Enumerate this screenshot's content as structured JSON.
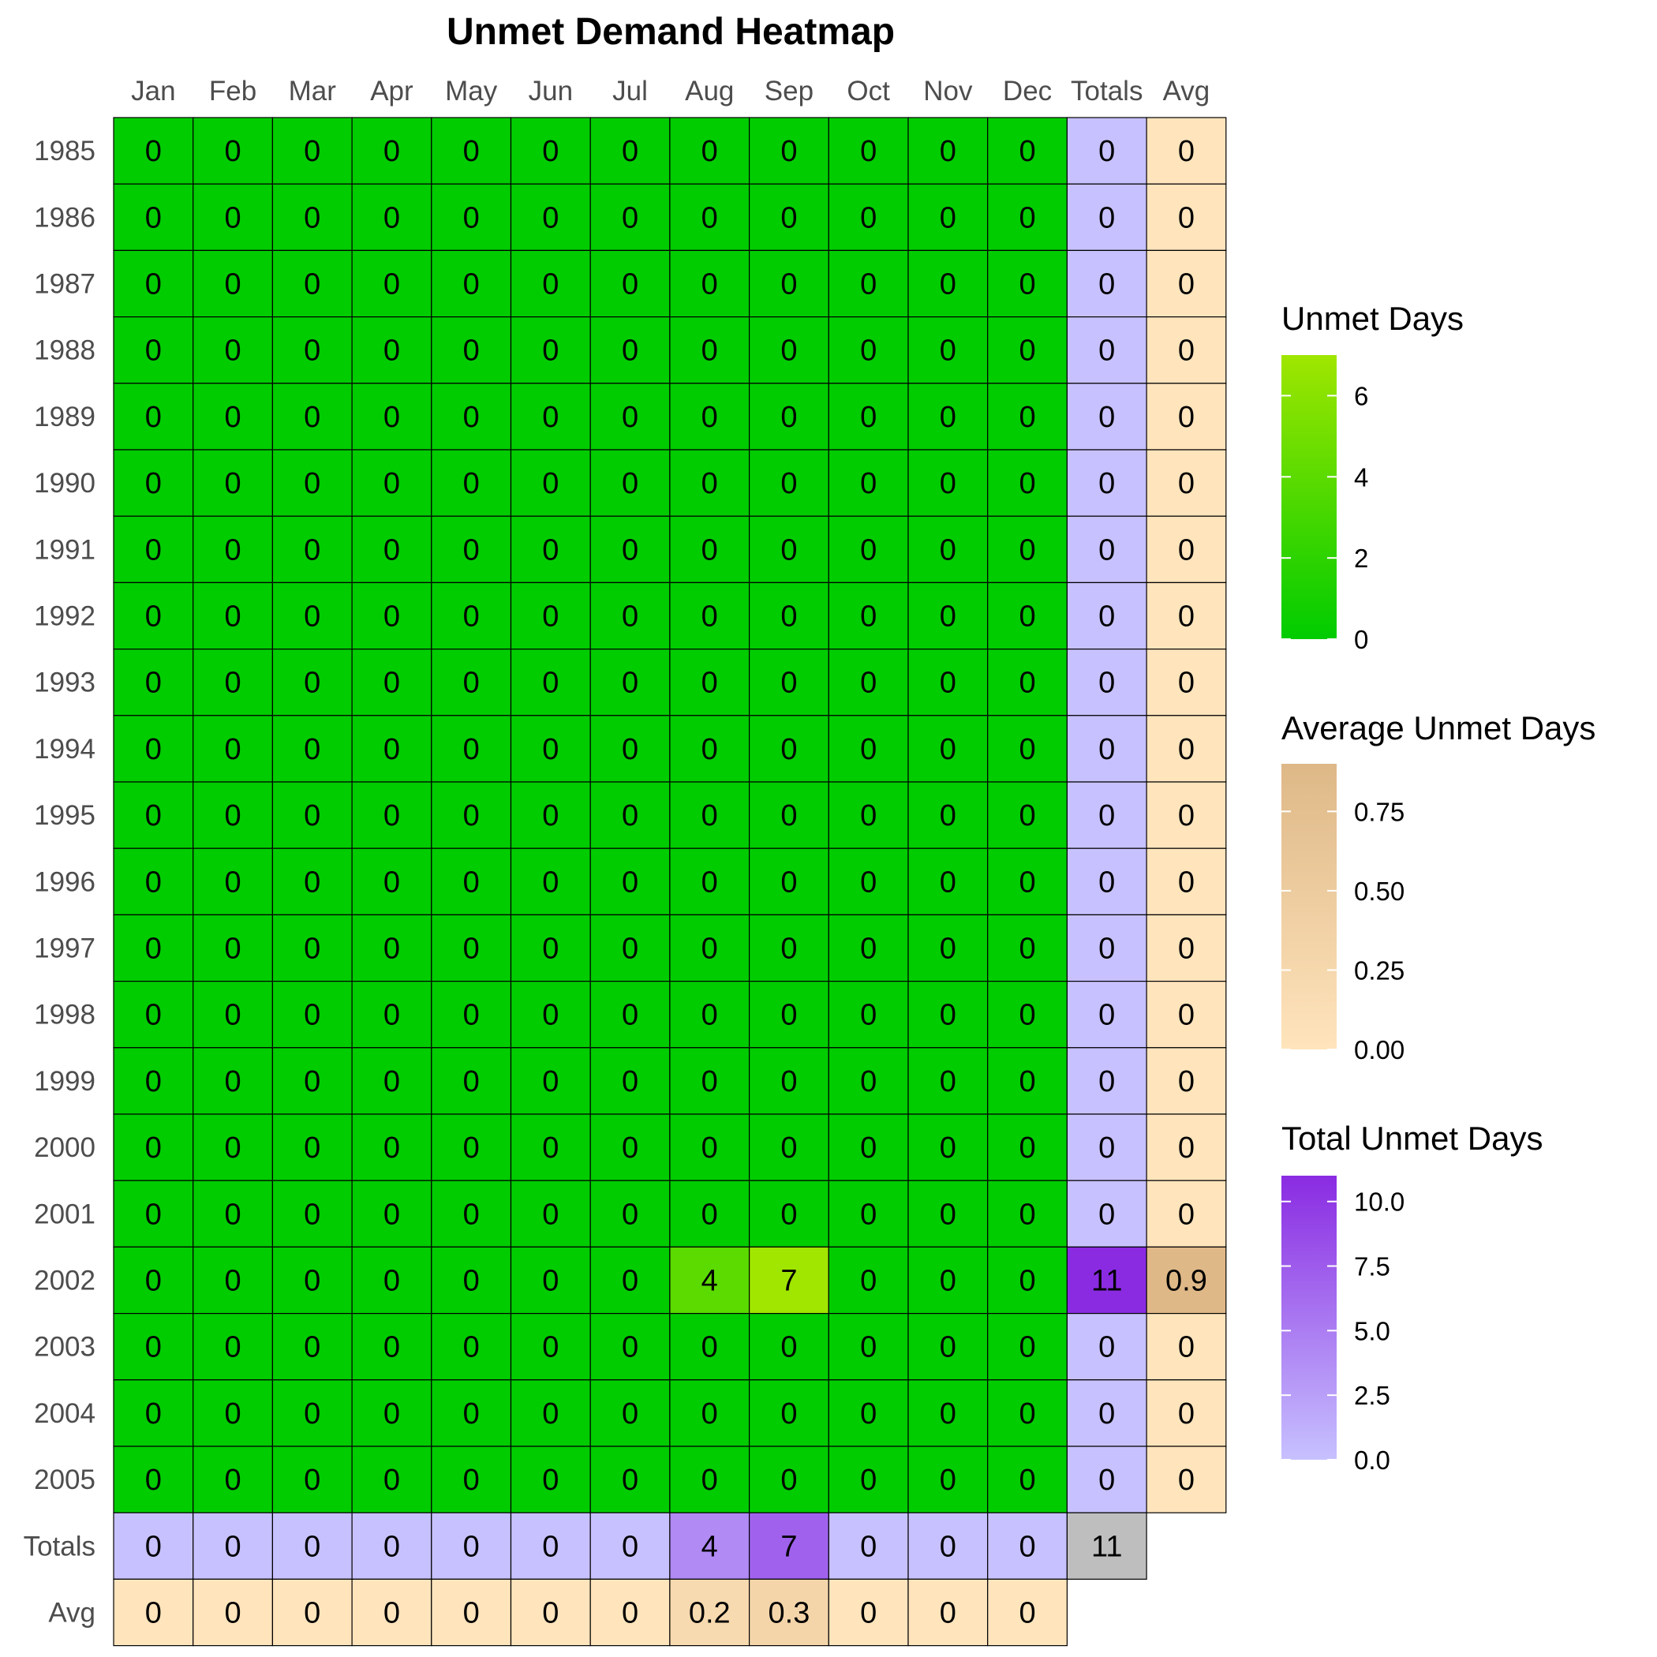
{
  "chart_data": {
    "type": "heatmap",
    "title": "Unmet Demand Heatmap",
    "columns": [
      "Jan",
      "Feb",
      "Mar",
      "Apr",
      "May",
      "Jun",
      "Jul",
      "Aug",
      "Sep",
      "Oct",
      "Nov",
      "Dec",
      "Totals",
      "Avg"
    ],
    "rows": [
      "1985",
      "1986",
      "1987",
      "1988",
      "1989",
      "1990",
      "1991",
      "1992",
      "1993",
      "1994",
      "1995",
      "1996",
      "1997",
      "1998",
      "1999",
      "2000",
      "2001",
      "2002",
      "2003",
      "2004",
      "2005",
      "Totals",
      "Avg"
    ],
    "monthly_values": [
      [
        0,
        0,
        0,
        0,
        0,
        0,
        0,
        0,
        0,
        0,
        0,
        0
      ],
      [
        0,
        0,
        0,
        0,
        0,
        0,
        0,
        0,
        0,
        0,
        0,
        0
      ],
      [
        0,
        0,
        0,
        0,
        0,
        0,
        0,
        0,
        0,
        0,
        0,
        0
      ],
      [
        0,
        0,
        0,
        0,
        0,
        0,
        0,
        0,
        0,
        0,
        0,
        0
      ],
      [
        0,
        0,
        0,
        0,
        0,
        0,
        0,
        0,
        0,
        0,
        0,
        0
      ],
      [
        0,
        0,
        0,
        0,
        0,
        0,
        0,
        0,
        0,
        0,
        0,
        0
      ],
      [
        0,
        0,
        0,
        0,
        0,
        0,
        0,
        0,
        0,
        0,
        0,
        0
      ],
      [
        0,
        0,
        0,
        0,
        0,
        0,
        0,
        0,
        0,
        0,
        0,
        0
      ],
      [
        0,
        0,
        0,
        0,
        0,
        0,
        0,
        0,
        0,
        0,
        0,
        0
      ],
      [
        0,
        0,
        0,
        0,
        0,
        0,
        0,
        0,
        0,
        0,
        0,
        0
      ],
      [
        0,
        0,
        0,
        0,
        0,
        0,
        0,
        0,
        0,
        0,
        0,
        0
      ],
      [
        0,
        0,
        0,
        0,
        0,
        0,
        0,
        0,
        0,
        0,
        0,
        0
      ],
      [
        0,
        0,
        0,
        0,
        0,
        0,
        0,
        0,
        0,
        0,
        0,
        0
      ],
      [
        0,
        0,
        0,
        0,
        0,
        0,
        0,
        0,
        0,
        0,
        0,
        0
      ],
      [
        0,
        0,
        0,
        0,
        0,
        0,
        0,
        0,
        0,
        0,
        0,
        0
      ],
      [
        0,
        0,
        0,
        0,
        0,
        0,
        0,
        0,
        0,
        0,
        0,
        0
      ],
      [
        0,
        0,
        0,
        0,
        0,
        0,
        0,
        0,
        0,
        0,
        0,
        0
      ],
      [
        0,
        0,
        0,
        0,
        0,
        0,
        0,
        4,
        7,
        0,
        0,
        0
      ],
      [
        0,
        0,
        0,
        0,
        0,
        0,
        0,
        0,
        0,
        0,
        0,
        0
      ],
      [
        0,
        0,
        0,
        0,
        0,
        0,
        0,
        0,
        0,
        0,
        0,
        0
      ],
      [
        0,
        0,
        0,
        0,
        0,
        0,
        0,
        0,
        0,
        0,
        0,
        0
      ]
    ],
    "row_totals": [
      "0",
      "0",
      "0",
      "0",
      "0",
      "0",
      "0",
      "0",
      "0",
      "0",
      "0",
      "0",
      "0",
      "0",
      "0",
      "0",
      "0",
      "11",
      "0",
      "0",
      "0"
    ],
    "row_avgs": [
      "0",
      "0",
      "0",
      "0",
      "0",
      "0",
      "0",
      "0",
      "0",
      "0",
      "0",
      "0",
      "0",
      "0",
      "0",
      "0",
      "0",
      "0.9",
      "0",
      "0",
      "0"
    ],
    "column_totals": [
      "0",
      "0",
      "0",
      "0",
      "0",
      "0",
      "0",
      "4",
      "7",
      "0",
      "0",
      "0"
    ],
    "column_avgs": [
      "0",
      "0",
      "0",
      "0",
      "0",
      "0",
      "0",
      "0.2",
      "0.3",
      "0",
      "0",
      "0"
    ],
    "grand_total": "11",
    "legends": [
      {
        "title": "Unmet Days",
        "ticks": [
          "0",
          "2",
          "4",
          "6"
        ],
        "tick_values": [
          0,
          2,
          4,
          6
        ],
        "range": [
          0,
          7
        ],
        "colors": [
          "#00cc00",
          "#a0e600"
        ]
      },
      {
        "title": "Average Unmet Days",
        "ticks": [
          "0.00",
          "0.25",
          "0.50",
          "0.75"
        ],
        "tick_values": [
          0,
          0.25,
          0.5,
          0.75
        ],
        "range": [
          0,
          0.9
        ],
        "colors": [
          "#ffe4bc",
          "#deb887"
        ]
      },
      {
        "title": "Total Unmet Days",
        "ticks": [
          "0.0",
          "2.5",
          "5.0",
          "7.5",
          "10.0"
        ],
        "tick_values": [
          0,
          2.5,
          5,
          7.5,
          10
        ],
        "range": [
          0,
          11
        ],
        "colors": [
          "#c7c1ff",
          "#8a2be2"
        ]
      }
    ],
    "grand_total_color": "#bebebe",
    "cell_border_color": "#000000"
  }
}
